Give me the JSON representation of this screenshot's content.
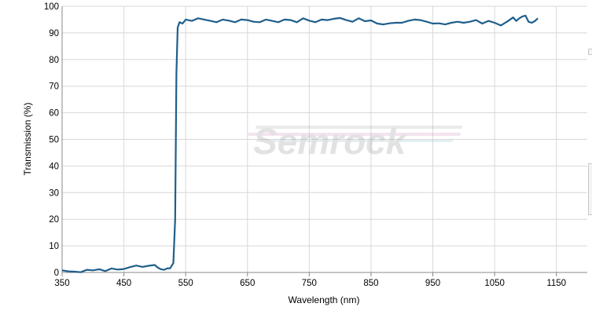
{
  "chart_data": {
    "type": "line",
    "title": "",
    "xlabel": "Wavelength (nm)",
    "ylabel": "Transmission (%)",
    "xlim": [
      350,
      1200
    ],
    "ylim": [
      0,
      100
    ],
    "x_ticks": [
      350,
      450,
      550,
      650,
      750,
      850,
      950,
      1050,
      1150
    ],
    "y_ticks": [
      0,
      10,
      20,
      30,
      40,
      50,
      60,
      70,
      80,
      90,
      100
    ],
    "grid": true,
    "legend": "none",
    "watermark": "Semrock",
    "series": [
      {
        "color": "#1f5f8b",
        "x": [
          350,
          360,
          370,
          380,
          390,
          400,
          410,
          420,
          430,
          440,
          450,
          460,
          470,
          480,
          490,
          500,
          505,
          510,
          515,
          520,
          525,
          530,
          533,
          535,
          537,
          540,
          545,
          550,
          560,
          570,
          580,
          590,
          600,
          610,
          620,
          630,
          640,
          650,
          660,
          670,
          680,
          690,
          700,
          710,
          720,
          730,
          740,
          750,
          760,
          770,
          780,
          790,
          800,
          810,
          820,
          830,
          840,
          850,
          860,
          870,
          880,
          890,
          900,
          910,
          920,
          930,
          940,
          950,
          960,
          970,
          980,
          990,
          1000,
          1010,
          1020,
          1030,
          1040,
          1050,
          1060,
          1070,
          1080,
          1085,
          1090,
          1095,
          1100,
          1105,
          1110,
          1115,
          1120
        ],
        "y": [
          0.8,
          0.4,
          0.3,
          0.1,
          1.0,
          0.8,
          1.2,
          0.5,
          1.5,
          1.1,
          1.3,
          2.0,
          2.6,
          2.1,
          2.5,
          2.8,
          1.8,
          1.2,
          1.0,
          1.5,
          1.6,
          3.5,
          20,
          75,
          92,
          94,
          93.5,
          95,
          94.5,
          95.5,
          95,
          94.5,
          94,
          95,
          94.6,
          94,
          95,
          94.8,
          94.2,
          94,
          95,
          94.5,
          94,
          95,
          94.8,
          94,
          95.5,
          94.6,
          94,
          95,
          94.8,
          95.3,
          95.6,
          94.8,
          94.2,
          95.5,
          94.4,
          94.7,
          93.5,
          93.2,
          93.6,
          93.8,
          93.8,
          94.5,
          95,
          94.8,
          94.2,
          93.5,
          93.6,
          93.2,
          93.8,
          94.2,
          93.8,
          94.2,
          94.8,
          93.5,
          94.5,
          93.8,
          92.8,
          94.2,
          95.8,
          94.5,
          95.5,
          96.2,
          96.5,
          94.2,
          93.8,
          94.4,
          95.5
        ]
      }
    ]
  }
}
